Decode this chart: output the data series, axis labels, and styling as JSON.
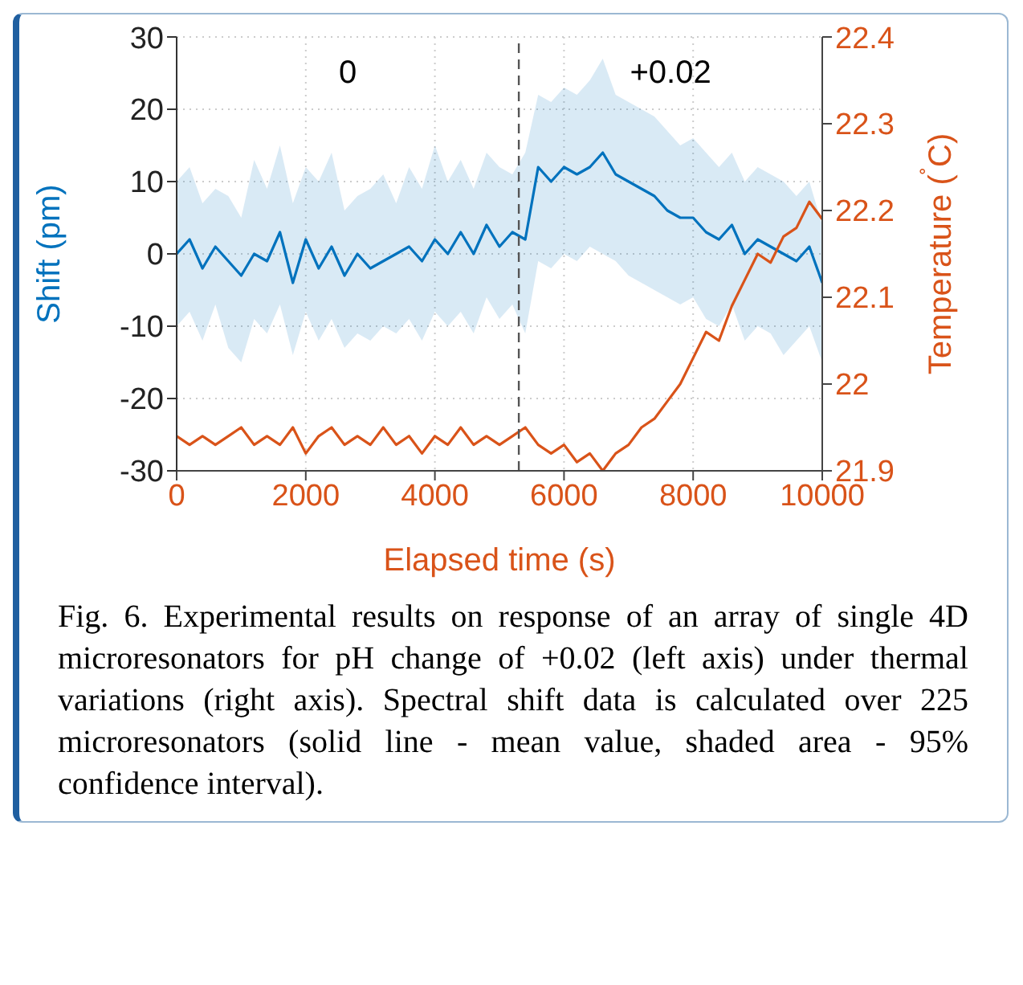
{
  "chart_data": {
    "type": "line",
    "xlabel": "Elapsed time (s)",
    "ylabel": "Shift (pm)",
    "y2label": "Temperature ($^{˚}$C)",
    "x": [
      0,
      200,
      400,
      600,
      800,
      1000,
      1200,
      1400,
      1600,
      1800,
      2000,
      2200,
      2400,
      2600,
      2800,
      3000,
      3200,
      3400,
      3600,
      3800,
      4000,
      4200,
      4400,
      4600,
      4800,
      5000,
      5200,
      5400,
      5600,
      5800,
      6000,
      6200,
      6400,
      6600,
      6800,
      7000,
      7200,
      7400,
      7600,
      7800,
      8000,
      8200,
      8400,
      8600,
      8800,
      9000,
      9200,
      9400,
      9600,
      9800,
      10000
    ],
    "series": [
      {
        "color": "#0072bd",
        "values": [
          0,
          2,
          -2,
          1,
          -1,
          -3,
          0,
          -1,
          3,
          -4,
          2,
          -2,
          1,
          -3,
          0,
          -2,
          -1,
          0,
          1,
          -1,
          2,
          0,
          3,
          0,
          4,
          1,
          3,
          2,
          12,
          10,
          12,
          11,
          12,
          14,
          11,
          10,
          9,
          8,
          6,
          5,
          5,
          3,
          2,
          4,
          0,
          2,
          1,
          0,
          -1,
          1,
          -4
        ],
        "upper": [
          10,
          12,
          7,
          9,
          8,
          5,
          13,
          9,
          15,
          7,
          12,
          10,
          14,
          6,
          8,
          9,
          11,
          7,
          12,
          9,
          15,
          10,
          13,
          9,
          14,
          12,
          11,
          14,
          22,
          21,
          23,
          22,
          24,
          27,
          22,
          21,
          20,
          19,
          17,
          15,
          16,
          14,
          12,
          14,
          10,
          12,
          11,
          10,
          8,
          10,
          4
        ],
        "lower": [
          -10,
          -8,
          -12,
          -7,
          -13,
          -15,
          -9,
          -11,
          -7,
          -14,
          -8,
          -12,
          -9,
          -13,
          -11,
          -12,
          -10,
          -11,
          -9,
          -12,
          -8,
          -10,
          -8,
          -11,
          -6,
          -9,
          -7,
          -11,
          -1,
          -2,
          0,
          -1,
          1,
          0,
          -1,
          -3,
          -4,
          -5,
          -6,
          -7,
          -6,
          -9,
          -10,
          -7,
          -12,
          -10,
          -11,
          -14,
          -12,
          -10,
          -15
        ]
      },
      {
        "color": "#d95319",
        "axis": "y2",
        "values": [
          21.94,
          21.93,
          21.94,
          21.93,
          21.94,
          21.95,
          21.93,
          21.94,
          21.93,
          21.95,
          21.92,
          21.94,
          21.95,
          21.93,
          21.94,
          21.93,
          21.95,
          21.93,
          21.94,
          21.92,
          21.94,
          21.93,
          21.95,
          21.93,
          21.94,
          21.93,
          21.94,
          21.95,
          21.93,
          21.92,
          21.93,
          21.91,
          21.92,
          21.9,
          21.92,
          21.93,
          21.95,
          21.96,
          21.98,
          22.0,
          22.03,
          22.06,
          22.05,
          22.09,
          22.12,
          22.15,
          22.14,
          22.17,
          22.18,
          22.21,
          22.19
        ]
      }
    ],
    "xlim": [
      0,
      10000
    ],
    "xticks": [
      0,
      2000,
      4000,
      6000,
      8000,
      10000
    ],
    "ylim": [
      -30,
      30
    ],
    "yticks": [
      -30,
      -20,
      -10,
      0,
      10,
      20,
      30
    ],
    "y2lim": [
      21.9,
      22.4
    ],
    "y2ticks": [
      21.9,
      22,
      22.1,
      22.2,
      22.3,
      22.4
    ],
    "grid": true,
    "line_style": "solid",
    "marker": "none",
    "ref_lines": [
      {
        "axis": "x",
        "value": 5300,
        "color": "#555555",
        "line_style": "dashed"
      }
    ],
    "annotations": [
      "0",
      "+0.02",
      "Fig. 6. Experimental results on response of an array of single 4D microresonators for pH change of +0.02 (left axis) under thermal variations (right axis). Spectral shift data is calculated over 225 microresonators (solid line - mean value, shaded area - 95% confidence interval)."
    ]
  }
}
